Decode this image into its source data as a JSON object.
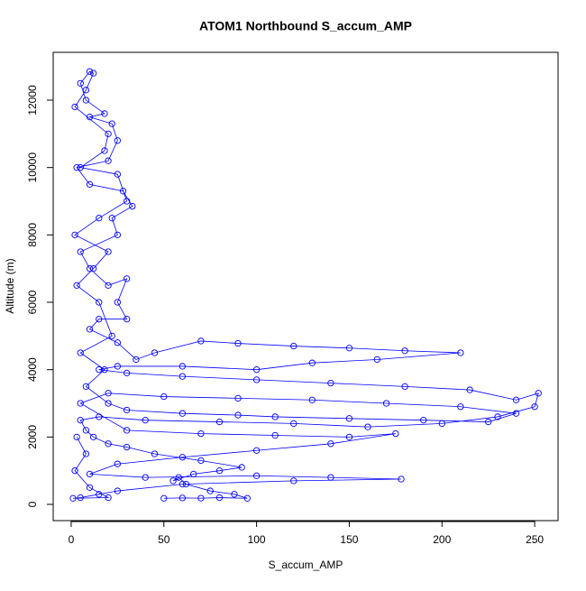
{
  "chart_data": {
    "type": "line",
    "markers": true,
    "title": "ATOM1 Northbound S_accum_AMP",
    "x_label": "S_accum_AMP",
    "y_label": "Altitude (m)",
    "xlim": [
      -9.7,
      262.6
    ],
    "ylim": [
      -482,
      13420
    ],
    "xticks": [
      0,
      50,
      100,
      150,
      200,
      250
    ],
    "yticks": [
      0,
      2000,
      4000,
      6000,
      8000,
      10000,
      12000
    ],
    "x": [
      50,
      60,
      70,
      80,
      95,
      88,
      75,
      62,
      58,
      55,
      66,
      80,
      92,
      70,
      45,
      30,
      20,
      12,
      8,
      5,
      15,
      40,
      80,
      120,
      160,
      200,
      230,
      250,
      252,
      240,
      215,
      180,
      140,
      100,
      60,
      30,
      15,
      25,
      60,
      100,
      130,
      165,
      210,
      180,
      150,
      120,
      90,
      70,
      45,
      35,
      25,
      10,
      15,
      30,
      25,
      30,
      20,
      10,
      5,
      25,
      22,
      33,
      28,
      10,
      3,
      20,
      25,
      22,
      10,
      18,
      8,
      5,
      10,
      12,
      8,
      2,
      20,
      18,
      5,
      25,
      30,
      15,
      2,
      20,
      12,
      3,
      15,
      22,
      5,
      18,
      8,
      20,
      30,
      60,
      90,
      110,
      150,
      190,
      225,
      240,
      210,
      170,
      130,
      90,
      50,
      20,
      5,
      30,
      70,
      110,
      150,
      175,
      140,
      100,
      60,
      25,
      10,
      40,
      100,
      140,
      178,
      120,
      60,
      25,
      15,
      5,
      1,
      20,
      10,
      2,
      8,
      3
    ],
    "series": [
      {
        "name": "S_accum_AMP",
        "color": "#0000ff",
        "values": [
          180,
          190,
          185,
          200,
          180,
          300,
          400,
          600,
          800,
          700,
          900,
          1000,
          1100,
          1300,
          1500,
          1700,
          1800,
          2000,
          2200,
          2500,
          2600,
          2500,
          2450,
          2400,
          2300,
          2400,
          2600,
          2900,
          3300,
          3100,
          3400,
          3500,
          3600,
          3700,
          3800,
          3900,
          4000,
          4100,
          4100,
          4000,
          4200,
          4300,
          4500,
          4560,
          4640,
          4700,
          4780,
          4850,
          4500,
          4300,
          4800,
          5200,
          5500,
          5500,
          6000,
          6700,
          6500,
          7000,
          7500,
          8000,
          8500,
          8850,
          9300,
          9500,
          10000,
          10200,
          10800,
          11300,
          11500,
          11600,
          12000,
          12500,
          12850,
          12800,
          12300,
          11800,
          11000,
          10500,
          10000,
          9800,
          9000,
          8500,
          8000,
          7500,
          7000,
          6500,
          6000,
          5000,
          4500,
          4000,
          3500,
          3000,
          2800,
          2700,
          2650,
          2600,
          2550,
          2500,
          2450,
          2700,
          2900,
          3000,
          3100,
          3150,
          3200,
          3300,
          3000,
          2200,
          2100,
          2050,
          2000,
          2100,
          1800,
          1600,
          1400,
          1200,
          900,
          800,
          850,
          800,
          750,
          700,
          600,
          400,
          300,
          200,
          180,
          200,
          500,
          1000,
          1500,
          2000
        ]
      }
    ]
  }
}
